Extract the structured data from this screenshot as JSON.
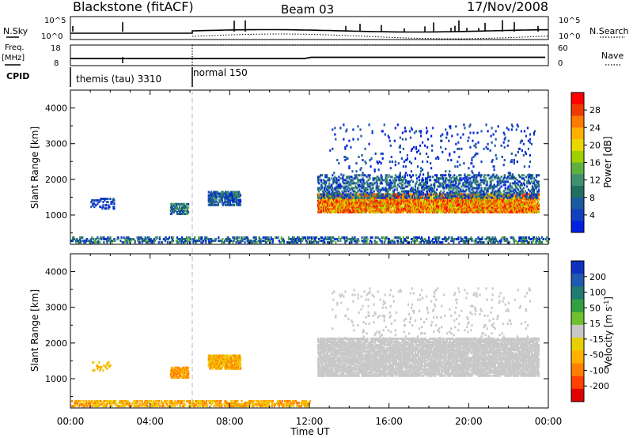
{
  "header": {
    "station": "Blackstone (fitACF)",
    "beam": "Beam 03",
    "date": "17/Nov/2008"
  },
  "summary_panels": {
    "nsky_label": "N.Sky",
    "nsearch_label": "N.Search",
    "freq_label_line1": "Freq.",
    "freq_label_line2": "[MHz]",
    "nave_label": "Nave",
    "cpid_label": "CPID",
    "nsky_ticks": [
      "10^5",
      "10^0"
    ],
    "nsearch_ticks": [
      "10^5",
      "10^0"
    ],
    "freq_ticks": [
      "18",
      "8"
    ],
    "nave_ticks": [
      "60",
      "0"
    ],
    "cpid_segments": [
      {
        "label": "themis (tau) 3310",
        "start_hour": 0,
        "end_hour": 6
      },
      {
        "label": "normal 150",
        "start_hour": 6,
        "end_hour": 24
      }
    ]
  },
  "power_colorbar": {
    "label": "Power [dB]",
    "ticks": [
      "28",
      "24",
      "20",
      "16",
      "12",
      "8",
      "4"
    ],
    "colors": [
      "#ff0000",
      "#ee3a00",
      "#ff7a00",
      "#ffb000",
      "#e8d800",
      "#a0d000",
      "#60b040",
      "#409070",
      "#207060",
      "#1c5aa0",
      "#1040c0",
      "#0020e0"
    ]
  },
  "velocity_colorbar": {
    "label": "Velocity [m s^-1]",
    "ticks": [
      "200",
      "100",
      "50",
      "15",
      "-15",
      "-50",
      "-100",
      "-200"
    ],
    "colors": [
      "#1030c0",
      "#205ab0",
      "#207a70",
      "#30a040",
      "#70c030",
      "#c8c8c8",
      "#e8d000",
      "#ffb000",
      "#ff8000",
      "#ff4000",
      "#e00000"
    ]
  },
  "chart_data": [
    {
      "type": "heatmap",
      "title": "Power",
      "ylabel": "Slant Range [km]",
      "xlabel": "",
      "ylim": [
        180,
        4500
      ],
      "xlim_hours": [
        0,
        24
      ],
      "yticks": [
        "4000",
        "3000",
        "2000",
        "1000"
      ],
      "xticks": [
        "00:00",
        "04:00",
        "08:00",
        "12:00",
        "16:00",
        "20:00",
        "00:00"
      ],
      "scatter_regions": [
        {
          "t0": 0.0,
          "t1": 24.0,
          "r0": 200,
          "r1": 350,
          "color_index": [
            6,
            11
          ],
          "density": 0.35
        },
        {
          "t0": 1.0,
          "t1": 2.2,
          "r0": 1150,
          "r1": 1450,
          "color_index": [
            9,
            11
          ],
          "density": 0.25
        },
        {
          "t0": 5.0,
          "t1": 5.9,
          "r0": 1000,
          "r1": 1300,
          "color_index": [
            6,
            10
          ],
          "density": 0.6
        },
        {
          "t0": 6.9,
          "t1": 8.5,
          "r0": 1250,
          "r1": 1650,
          "color_index": [
            7,
            11
          ],
          "density": 0.6
        },
        {
          "t0": 12.4,
          "t1": 23.5,
          "r0": 1050,
          "r1": 1550,
          "color_index": [
            0,
            5
          ],
          "density": 0.8
        },
        {
          "t0": 12.4,
          "t1": 23.5,
          "r0": 1450,
          "r1": 2100,
          "color_index": [
            7,
            11
          ],
          "density": 0.3
        },
        {
          "t0": 13.0,
          "t1": 23.3,
          "r0": 2100,
          "r1": 3500,
          "color_index": [
            9,
            11
          ],
          "density": 0.03
        }
      ]
    },
    {
      "type": "heatmap",
      "title": "Velocity",
      "ylabel": "Slant Range [km]",
      "xlabel": "Time UT",
      "ylim": [
        180,
        4500
      ],
      "xlim_hours": [
        0,
        24
      ],
      "yticks": [
        "4000",
        "3000",
        "2000",
        "1000"
      ],
      "xticks": [
        "00:00",
        "04:00",
        "08:00",
        "12:00",
        "16:00",
        "20:00",
        "00:00"
      ],
      "scatter_regions": [
        {
          "t0": 0.0,
          "t1": 12.0,
          "r0": 200,
          "r1": 350,
          "color_index": [
            6,
            8
          ],
          "density": 0.45
        },
        {
          "t0": 1.0,
          "t1": 2.0,
          "r0": 1200,
          "r1": 1450,
          "color_index": [
            6,
            7
          ],
          "density": 0.15
        },
        {
          "t0": 5.0,
          "t1": 5.9,
          "r0": 1000,
          "r1": 1300,
          "color_index": [
            7,
            8
          ],
          "density": 0.7
        },
        {
          "t0": 6.9,
          "t1": 8.5,
          "r0": 1250,
          "r1": 1650,
          "color_index": [
            6,
            8
          ],
          "density": 0.7
        },
        {
          "t0": 12.4,
          "t1": 23.5,
          "r0": 1050,
          "r1": 2100,
          "color_index": [
            5,
            5
          ],
          "density": 0.65
        },
        {
          "t0": 13.0,
          "t1": 23.3,
          "r0": 2100,
          "r1": 3500,
          "color_index": [
            5,
            5
          ],
          "density": 0.03
        }
      ]
    }
  ],
  "colorbar_order_note": ""
}
